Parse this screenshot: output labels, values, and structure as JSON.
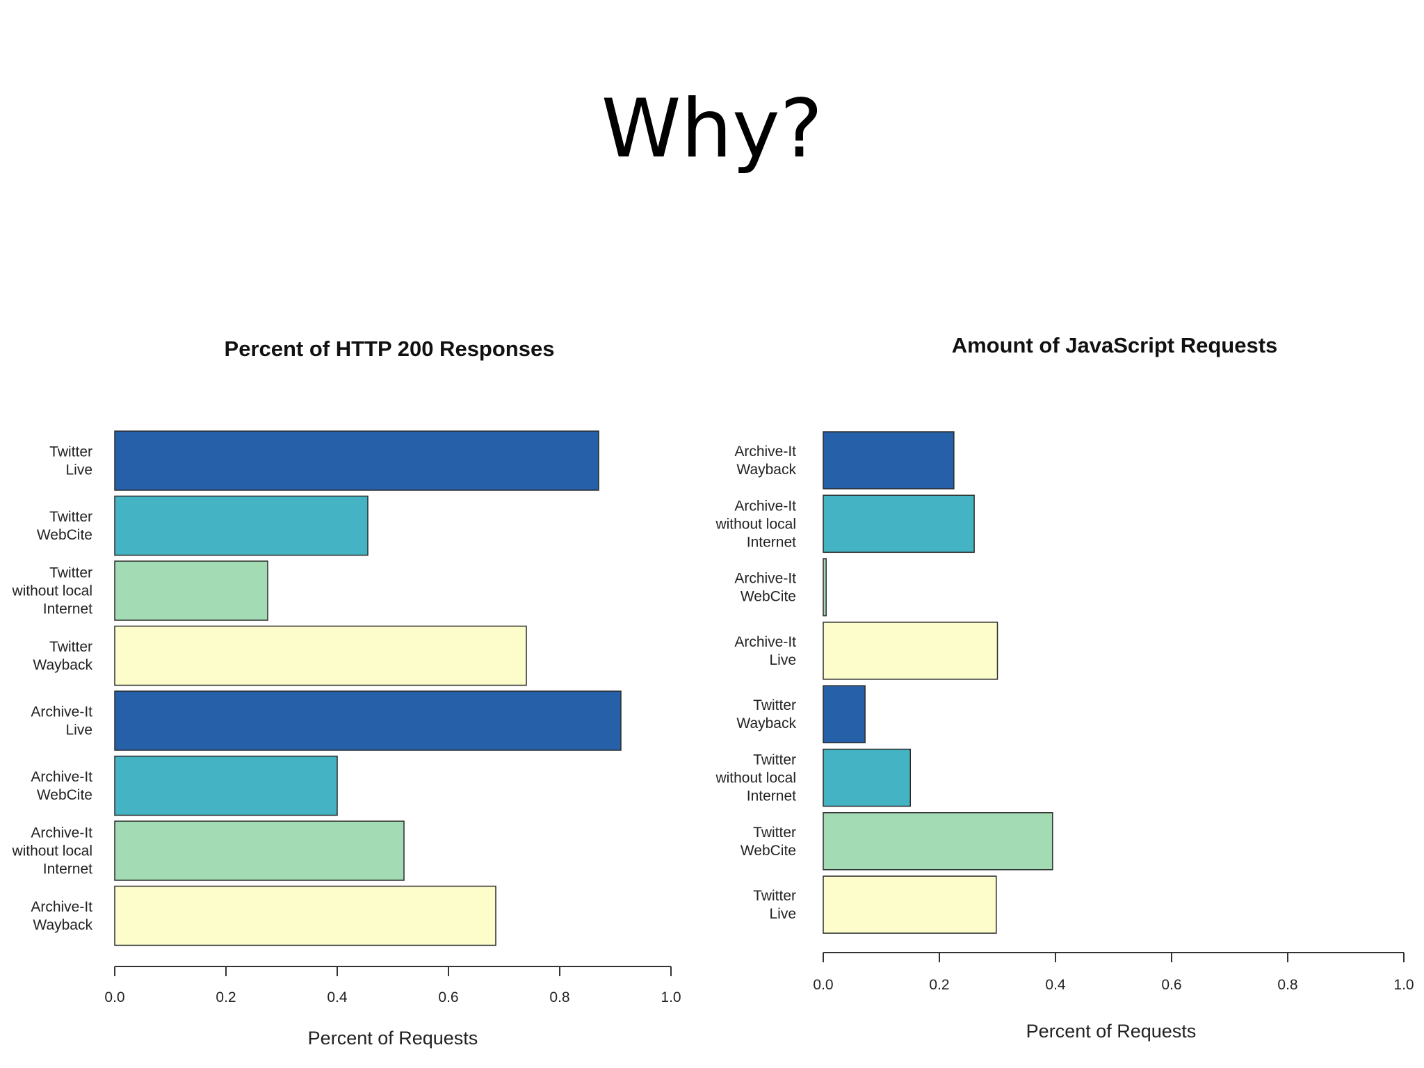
{
  "slide": {
    "title": "Why?"
  },
  "chart_data": [
    {
      "type": "bar",
      "orientation": "horizontal",
      "title": "Percent of HTTP 200 Responses",
      "xlabel": "Percent of Requests",
      "ylabel": "",
      "xlim": [
        0,
        1
      ],
      "xticks": [
        "0.0",
        "0.2",
        "0.4",
        "0.6",
        "0.8",
        "1.0"
      ],
      "categories": [
        "Twitter\nLive",
        "Twitter\nWebCite",
        "Twitter\nwithout local\nInternet",
        "Twitter\nWayback",
        "Archive-It\nLive",
        "Archive-It\nWebCite",
        "Archive-It\nwithout local\nInternet",
        "Archive-It\nWayback"
      ],
      "values": [
        0.87,
        0.455,
        0.275,
        0.74,
        0.91,
        0.4,
        0.52,
        0.685
      ],
      "colors": [
        "#2560a8",
        "#44b4c4",
        "#a3dbb4",
        "#fdfdcc",
        "#2560a8",
        "#44b4c4",
        "#a3dbb4",
        "#fdfdcc"
      ]
    },
    {
      "type": "bar",
      "orientation": "horizontal",
      "title": "Amount of JavaScript Requests",
      "xlabel": "Percent of Requests",
      "ylabel": "",
      "xlim": [
        0,
        1
      ],
      "xticks": [
        "0.0",
        "0.2",
        "0.4",
        "0.6",
        "0.8",
        "1.0"
      ],
      "categories": [
        "Archive-It\nWayback",
        "Archive-It\nwithout local\nInternet",
        "Archive-It\nWebCite",
        "Archive-It\nLive",
        "Twitter\nWayback",
        "Twitter\nwithout local\nInternet",
        "Twitter\nWebCite",
        "Twitter\nLive"
      ],
      "values": [
        0.225,
        0.26,
        0.005,
        0.3,
        0.072,
        0.15,
        0.395,
        0.298
      ],
      "colors": [
        "#2560a8",
        "#44b4c4",
        "#a3dbb4",
        "#fdfdcc",
        "#2560a8",
        "#44b4c4",
        "#a3dbb4",
        "#fdfdcc"
      ]
    }
  ]
}
